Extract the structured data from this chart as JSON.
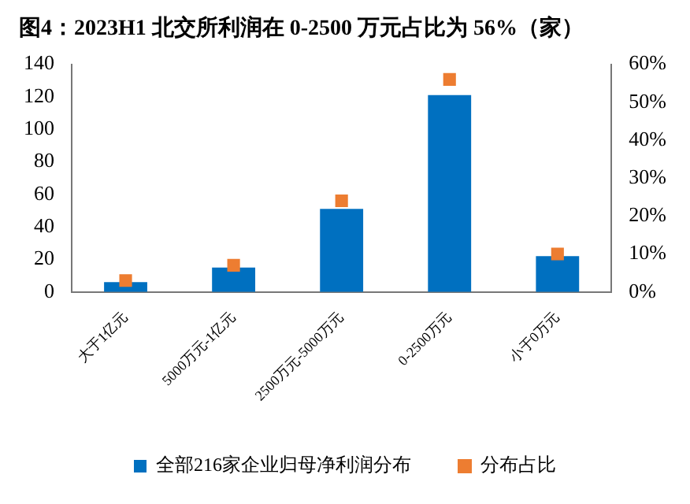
{
  "chart_data": {
    "type": "bar",
    "title": "图4：2023H1 北交所利润在 0-2500 万元占比为 56%（家）",
    "categories": [
      "大于1亿元",
      "5000万元-1亿元",
      "2500万元-5000万元",
      "0-2500万元",
      "小于0万元"
    ],
    "series": [
      {
        "name": "全部216家企业归母净利润分布",
        "color": "#0070c0",
        "values": [
          6,
          15,
          51,
          121,
          22
        ]
      },
      {
        "name": "分布占比",
        "type": "scatter",
        "axis": "y2",
        "marker": "square",
        "color": "#ed7d31",
        "values": [
          3,
          7,
          24,
          56,
          10
        ]
      }
    ],
    "ylim": [
      0,
      140
    ],
    "yticks": [
      0,
      20,
      40,
      60,
      80,
      100,
      120,
      140
    ],
    "y2lim": [
      0,
      60
    ],
    "y2ticks": [
      {
        "value": 0,
        "label": "0%"
      },
      {
        "value": 10,
        "label": "10%"
      },
      {
        "value": 20,
        "label": "20%"
      },
      {
        "value": 30,
        "label": "30%"
      },
      {
        "value": 40,
        "label": "40%"
      },
      {
        "value": 50,
        "label": "50%"
      },
      {
        "value": 60,
        "label": "60%"
      }
    ],
    "grid": false,
    "legend": "bottom"
  }
}
